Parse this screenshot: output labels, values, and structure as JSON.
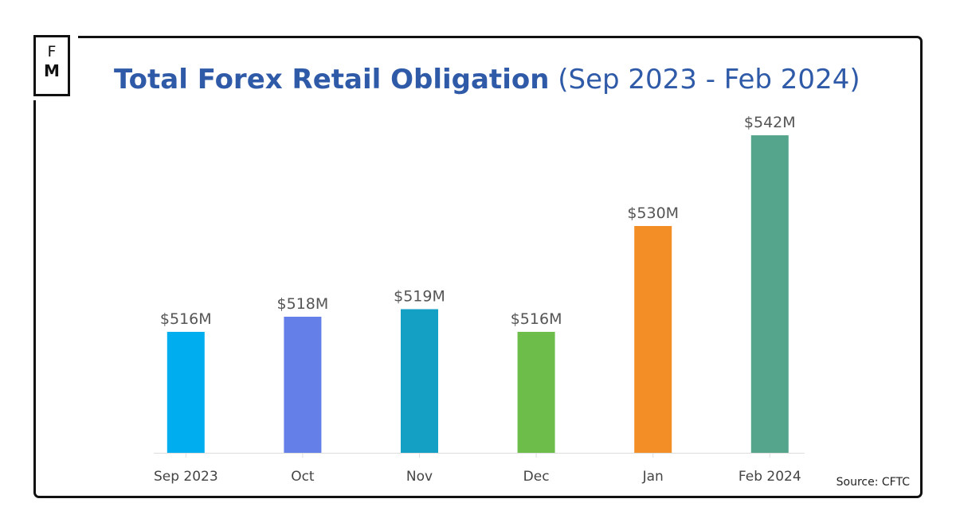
{
  "logo": {
    "line1": "F",
    "line2": "M"
  },
  "title": {
    "main": "Total Forex Retail Obligation",
    "sub": "(Sep 2023 - Feb 2024)"
  },
  "source": "Source: CFTC",
  "chart_data": {
    "type": "bar",
    "title": "Total Forex Retail Obligation (Sep 2023 - Feb 2024)",
    "categories": [
      "Sep 2023",
      "Oct",
      "Nov",
      "Dec",
      "Jan",
      "Feb 2024"
    ],
    "values": [
      516,
      518,
      519,
      516,
      530,
      542
    ],
    "data_labels": [
      "$516M",
      "$518M",
      "$519M",
      "$516M",
      "$530M",
      "$542M"
    ],
    "colors": [
      "#00aeef",
      "#647fe8",
      "#14a0c4",
      "#6cbd4a",
      "#f28e25",
      "#55a58d"
    ],
    "ylim": [
      500,
      545
    ],
    "grid": false,
    "y_axis_visible": false
  }
}
